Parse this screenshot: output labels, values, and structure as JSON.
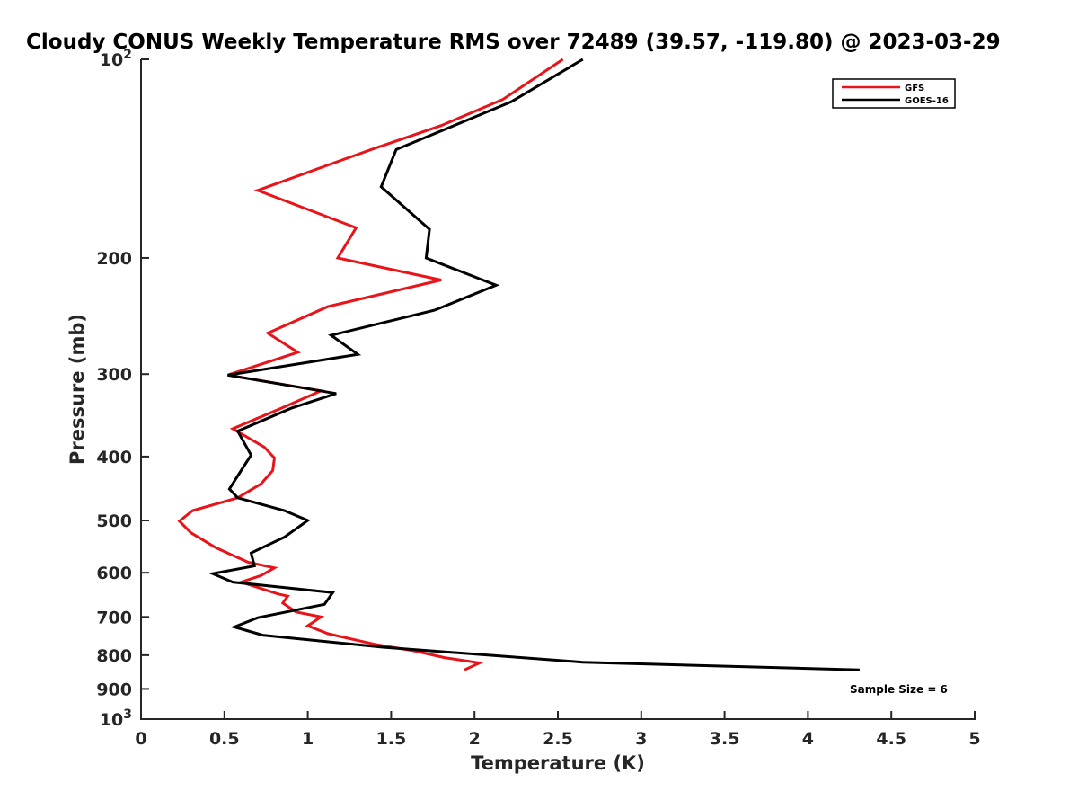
{
  "chart_data": {
    "type": "line",
    "title": "Cloudy CONUS Weekly Temperature RMS over 72489 (39.57, -119.80) @ 2023-03-29",
    "xlabel": "Temperature (K)",
    "ylabel": "Pressure (mb)",
    "xlim": [
      0,
      5
    ],
    "ylim": [
      100,
      1000
    ],
    "y_scale": "log",
    "y_reversed": true,
    "grid": false,
    "legend_position": "top-right",
    "x_ticks": [
      0,
      0.5,
      1,
      1.5,
      2,
      2.5,
      3,
      3.5,
      4,
      4.5,
      5
    ],
    "x_tick_labels": [
      "0",
      "0.5",
      "1",
      "1.5",
      "2",
      "2.5",
      "3",
      "3.5",
      "4",
      "4.5",
      "5"
    ],
    "y_ticks": [
      100,
      200,
      300,
      400,
      500,
      600,
      700,
      800,
      900,
      1000
    ],
    "y_tick_labels": [
      {
        "base": "10",
        "exp": "2"
      },
      {
        "base": "200",
        "exp": ""
      },
      {
        "base": "300",
        "exp": ""
      },
      {
        "base": "400",
        "exp": ""
      },
      {
        "base": "500",
        "exp": ""
      },
      {
        "base": "600",
        "exp": ""
      },
      {
        "base": "700",
        "exp": ""
      },
      {
        "base": "800",
        "exp": ""
      },
      {
        "base": "900",
        "exp": ""
      },
      {
        "base": "10",
        "exp": "3"
      }
    ],
    "annotation": "Sample Size = 6",
    "series": [
      {
        "name": "GFS",
        "color": "#e8141a",
        "points": [
          {
            "x": 2.53,
            "p": 100
          },
          {
            "x": 2.17,
            "p": 115
          },
          {
            "x": 1.8,
            "p": 126
          },
          {
            "x": 1.38,
            "p": 137
          },
          {
            "x": 0.7,
            "p": 158
          },
          {
            "x": 1.29,
            "p": 180
          },
          {
            "x": 1.18,
            "p": 200
          },
          {
            "x": 1.8,
            "p": 216
          },
          {
            "x": 1.12,
            "p": 237
          },
          {
            "x": 0.76,
            "p": 260
          },
          {
            "x": 0.94,
            "p": 278
          },
          {
            "x": 0.52,
            "p": 301
          },
          {
            "x": 1.08,
            "p": 318
          },
          {
            "x": 0.84,
            "p": 338
          },
          {
            "x": 0.55,
            "p": 363
          },
          {
            "x": 0.74,
            "p": 387
          },
          {
            "x": 0.8,
            "p": 402
          },
          {
            "x": 0.79,
            "p": 420
          },
          {
            "x": 0.72,
            "p": 440
          },
          {
            "x": 0.58,
            "p": 462
          },
          {
            "x": 0.31,
            "p": 483
          },
          {
            "x": 0.23,
            "p": 501
          },
          {
            "x": 0.3,
            "p": 522
          },
          {
            "x": 0.45,
            "p": 550
          },
          {
            "x": 0.64,
            "p": 578
          },
          {
            "x": 0.8,
            "p": 590
          },
          {
            "x": 0.72,
            "p": 606
          },
          {
            "x": 0.6,
            "p": 620
          },
          {
            "x": 0.82,
            "p": 646
          },
          {
            "x": 0.88,
            "p": 651
          },
          {
            "x": 0.85,
            "p": 667
          },
          {
            "x": 0.93,
            "p": 688
          },
          {
            "x": 1.08,
            "p": 700
          },
          {
            "x": 1.0,
            "p": 722
          },
          {
            "x": 1.12,
            "p": 742
          },
          {
            "x": 1.4,
            "p": 770
          },
          {
            "x": 1.64,
            "p": 788
          },
          {
            "x": 1.82,
            "p": 807
          },
          {
            "x": 2.03,
            "p": 822
          },
          {
            "x": 1.94,
            "p": 842
          }
        ]
      },
      {
        "name": "GOES-16",
        "color": "#000000",
        "points": [
          {
            "x": 2.65,
            "p": 100
          },
          {
            "x": 2.22,
            "p": 116
          },
          {
            "x": 1.53,
            "p": 137
          },
          {
            "x": 1.44,
            "p": 156
          },
          {
            "x": 1.73,
            "p": 181
          },
          {
            "x": 1.71,
            "p": 200
          },
          {
            "x": 2.13,
            "p": 220
          },
          {
            "x": 1.76,
            "p": 240
          },
          {
            "x": 1.14,
            "p": 262
          },
          {
            "x": 1.3,
            "p": 280
          },
          {
            "x": 0.52,
            "p": 301
          },
          {
            "x": 1.17,
            "p": 321
          },
          {
            "x": 0.9,
            "p": 338
          },
          {
            "x": 0.58,
            "p": 366
          },
          {
            "x": 0.66,
            "p": 398
          },
          {
            "x": 0.6,
            "p": 420
          },
          {
            "x": 0.53,
            "p": 448
          },
          {
            "x": 0.58,
            "p": 462
          },
          {
            "x": 0.86,
            "p": 483
          },
          {
            "x": 1.0,
            "p": 500
          },
          {
            "x": 0.86,
            "p": 530
          },
          {
            "x": 0.66,
            "p": 560
          },
          {
            "x": 0.68,
            "p": 586
          },
          {
            "x": 0.43,
            "p": 602
          },
          {
            "x": 0.55,
            "p": 620
          },
          {
            "x": 1.15,
            "p": 643
          },
          {
            "x": 1.1,
            "p": 670
          },
          {
            "x": 0.7,
            "p": 702
          },
          {
            "x": 0.56,
            "p": 725
          },
          {
            "x": 0.73,
            "p": 746
          },
          {
            "x": 1.45,
            "p": 778
          },
          {
            "x": 2.65,
            "p": 820
          },
          {
            "x": 4.31,
            "p": 842
          }
        ]
      }
    ]
  }
}
